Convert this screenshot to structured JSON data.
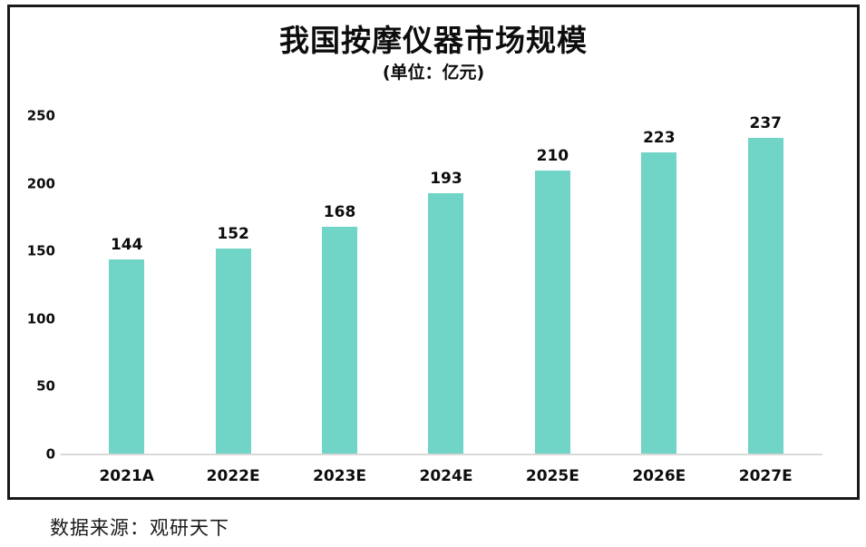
{
  "chart_data": {
    "type": "bar",
    "title": "我国按摩仪器市场规模",
    "subtitle": "(单位：亿元)",
    "categories": [
      "2021A",
      "2022E",
      "2023E",
      "2024E",
      "2025E",
      "2026E",
      "2027E"
    ],
    "values": [
      144,
      152,
      168,
      193,
      210,
      223,
      237
    ],
    "xlabel": "",
    "ylabel": "",
    "ylim": [
      0,
      250
    ],
    "yticks": [
      0,
      50,
      100,
      150,
      200,
      250
    ],
    "grid": false,
    "legend_position": "none",
    "bar_color": "#70d4c6",
    "frame_border_color": "#1a1a1a",
    "axis_line_color": "#d9d9d9",
    "text_color": "#0d0d0d"
  },
  "source": {
    "label": "数据来源：观研天下"
  }
}
